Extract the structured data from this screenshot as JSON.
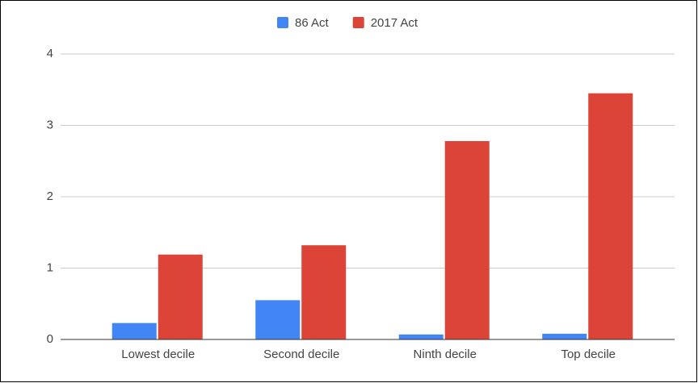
{
  "chart_data": {
    "type": "bar",
    "categories": [
      "Lowest decile",
      "Second decile",
      "Ninth decile",
      "Top decile"
    ],
    "series": [
      {
        "name": "86 Act",
        "color": "#4285f4",
        "values": [
          0.23,
          0.55,
          0.07,
          0.08
        ]
      },
      {
        "name": "2017 Act",
        "color": "#db4437",
        "values": [
          1.19,
          1.32,
          2.78,
          3.45
        ]
      }
    ],
    "ylim": [
      0,
      4
    ],
    "yticks": [
      0,
      1,
      2,
      3,
      4
    ],
    "grid": true,
    "legend": "top"
  }
}
